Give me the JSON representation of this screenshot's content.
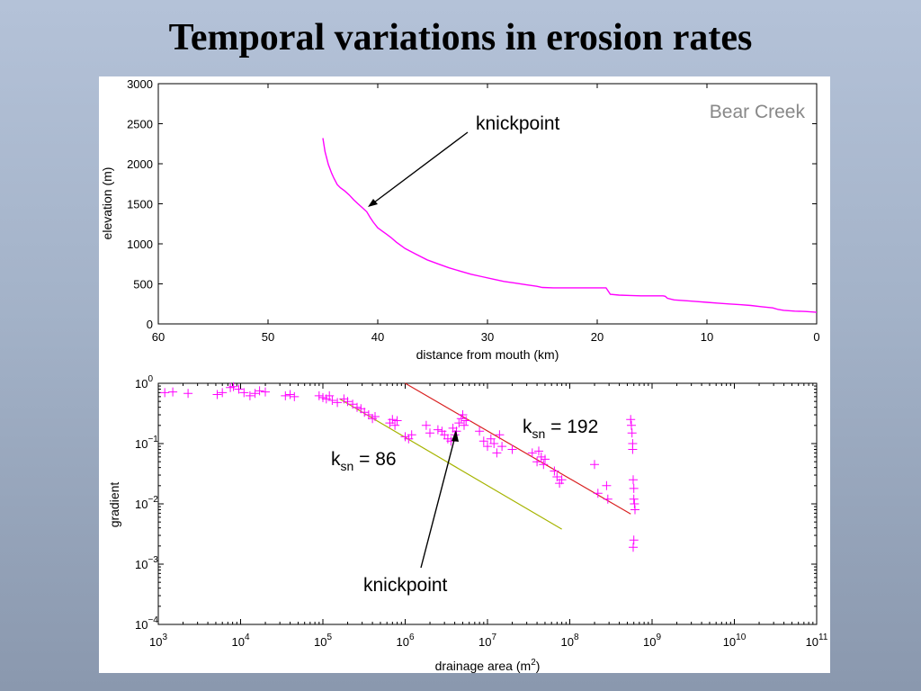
{
  "slide": {
    "title": "Temporal variations in erosion rates"
  },
  "chart_data": [
    {
      "type": "line",
      "corner_label": "Bear Creek",
      "xlabel": "distance from mouth (km)",
      "ylabel": "elevation (m)",
      "xlim": [
        60,
        0
      ],
      "ylim": [
        0,
        3000
      ],
      "x_ticks": [
        60,
        50,
        40,
        30,
        20,
        10,
        0
      ],
      "y_ticks": [
        0,
        500,
        1000,
        1500,
        2000,
        2500,
        3000
      ],
      "grid": false,
      "series_color": "#ff00ff",
      "x": [
        45,
        44.8,
        44.5,
        44.2,
        44,
        43.7,
        43.4,
        43,
        42.6,
        42.2,
        41.8,
        41.4,
        41,
        40.7,
        40.4,
        40,
        39.6,
        39.2,
        38.8,
        38.3,
        37.5,
        36.5,
        35.5,
        34.5,
        33.5,
        32.5,
        31.5,
        30.5,
        29.5,
        28.5,
        27.5,
        26.5,
        25.5,
        25,
        24,
        23,
        22,
        21,
        20,
        19.2,
        19,
        18.8,
        18,
        17,
        16,
        15,
        14,
        13.8,
        13.6,
        13,
        12,
        11,
        10,
        9,
        8,
        7,
        6,
        5,
        4,
        3.5,
        3,
        2,
        1,
        0
      ],
      "y": [
        2320,
        2150,
        1990,
        1880,
        1820,
        1740,
        1700,
        1660,
        1610,
        1550,
        1500,
        1450,
        1400,
        1330,
        1270,
        1200,
        1160,
        1120,
        1080,
        1020,
        940,
        870,
        800,
        750,
        700,
        660,
        620,
        590,
        560,
        530,
        510,
        490,
        470,
        455,
        450,
        450,
        450,
        450,
        450,
        450,
        410,
        370,
        360,
        355,
        350,
        350,
        350,
        345,
        320,
        300,
        290,
        280,
        270,
        260,
        250,
        240,
        230,
        215,
        200,
        180,
        170,
        160,
        155,
        145
      ],
      "annotations": [
        {
          "text": "knickpoint",
          "x": 41,
          "y": 1460
        }
      ]
    },
    {
      "type": "scatter",
      "xlabel_text": "drainage area (m",
      "xlabel_sup": "2",
      "xlabel_close": ")",
      "ylabel": "gradient",
      "x_scale": "log",
      "y_scale": "log",
      "xlim": [
        1000,
        100000000000
      ],
      "ylim": [
        0.0001,
        1
      ],
      "x_tick_exponents": [
        3,
        4,
        5,
        6,
        7,
        8,
        9,
        10,
        11
      ],
      "y_tick_exponents": [
        -4,
        -3,
        -2,
        -1,
        0
      ],
      "tick_base": "10",
      "grid": false,
      "marker": "+",
      "marker_color": "#ff00ff",
      "points": [
        [
          1200.0,
          0.7
        ],
        [
          1500.0,
          0.72
        ],
        [
          2300.0,
          0.68
        ],
        [
          5200.0,
          0.65
        ],
        [
          6000.0,
          0.7
        ],
        [
          7500.0,
          0.85
        ],
        [
          8200.0,
          0.88
        ],
        [
          9500.0,
          0.8
        ],
        [
          11000.0,
          0.7
        ],
        [
          13000.0,
          0.62
        ],
        [
          15000.0,
          0.68
        ],
        [
          17000.0,
          0.75
        ],
        [
          20000.0,
          0.72
        ],
        [
          35000.0,
          0.62
        ],
        [
          40000.0,
          0.65
        ],
        [
          45000.0,
          0.6
        ],
        [
          90000.0,
          0.62
        ],
        [
          100000.0,
          0.58
        ],
        [
          110000.0,
          0.55
        ],
        [
          120000.0,
          0.62
        ],
        [
          130000.0,
          0.52
        ],
        [
          150000.0,
          0.48
        ],
        [
          180000.0,
          0.55
        ],
        [
          200000.0,
          0.5
        ],
        [
          230000.0,
          0.45
        ],
        [
          260000.0,
          0.4
        ],
        [
          290000.0,
          0.38
        ],
        [
          320000.0,
          0.33
        ],
        [
          360000.0,
          0.3
        ],
        [
          400000.0,
          0.26
        ],
        [
          430000.0,
          0.28
        ],
        [
          650000.0,
          0.22
        ],
        [
          700000.0,
          0.25
        ],
        [
          750000.0,
          0.2
        ],
        [
          800000.0,
          0.24
        ],
        [
          1000000.0,
          0.13
        ],
        [
          1100000.0,
          0.12
        ],
        [
          1200000.0,
          0.14
        ],
        [
          1800000.0,
          0.2
        ],
        [
          2000000.0,
          0.15
        ],
        [
          2500000.0,
          0.17
        ],
        [
          2800000.0,
          0.16
        ],
        [
          3000000.0,
          0.14
        ],
        [
          3300000.0,
          0.12
        ],
        [
          3600000.0,
          0.11
        ],
        [
          3800000.0,
          0.18
        ],
        [
          4000000.0,
          0.14
        ],
        [
          4200000.0,
          0.16
        ],
        [
          4500000.0,
          0.22
        ],
        [
          4800000.0,
          0.26
        ],
        [
          5000000.0,
          0.3
        ],
        [
          5200000.0,
          0.2
        ],
        [
          5500000.0,
          0.24
        ],
        [
          8000000.0,
          0.16
        ],
        [
          9000000.0,
          0.11
        ],
        [
          10000000.0,
          0.09
        ],
        [
          11000000.0,
          0.12
        ],
        [
          12000000.0,
          0.1
        ],
        [
          13000000.0,
          0.07
        ],
        [
          14000000.0,
          0.14
        ],
        [
          15000000.0,
          0.09
        ],
        [
          20000000.0,
          0.08
        ],
        [
          35000000.0,
          0.07
        ],
        [
          40000000.0,
          0.05
        ],
        [
          42000000.0,
          0.075
        ],
        [
          45000000.0,
          0.06
        ],
        [
          48000000.0,
          0.045
        ],
        [
          50000000.0,
          0.055
        ],
        [
          65000000.0,
          0.035
        ],
        [
          70000000.0,
          0.028
        ],
        [
          75000000.0,
          0.022
        ],
        [
          80000000.0,
          0.025
        ],
        [
          200000000.0,
          0.045
        ],
        [
          220000000.0,
          0.015
        ],
        [
          280000000.0,
          0.02
        ],
        [
          290000000.0,
          0.012
        ],
        [
          550000000.0,
          0.25
        ],
        [
          560000000.0,
          0.2
        ],
        [
          570000000.0,
          0.15
        ],
        [
          580000000.0,
          0.1
        ],
        [
          580000000.0,
          0.08
        ],
        [
          590000000.0,
          0.025
        ],
        [
          600000000.0,
          0.018
        ],
        [
          600000000.0,
          0.012
        ],
        [
          610000000.0,
          0.01
        ],
        [
          620000000.0,
          0.008
        ],
        [
          600000000.0,
          0.0025
        ],
        [
          590000000.0,
          0.0019
        ]
      ],
      "fit_lines": [
        {
          "label_main": "k",
          "label_sub": "sn",
          "label_rest": " = 86",
          "color": "#a6b400",
          "x": [
            160000.0,
            80000000.0
          ],
          "y": [
            0.55,
            0.0038
          ]
        },
        {
          "label_main": "k",
          "label_sub": "sn",
          "label_rest": " = 192",
          "color": "#d92020",
          "x": [
            1000000.0,
            550000000.0
          ],
          "y": [
            1.0,
            0.0068
          ]
        }
      ],
      "annotations": [
        {
          "text": "knickpoint",
          "x": 4200000.0,
          "y": 0.13
        }
      ]
    }
  ]
}
